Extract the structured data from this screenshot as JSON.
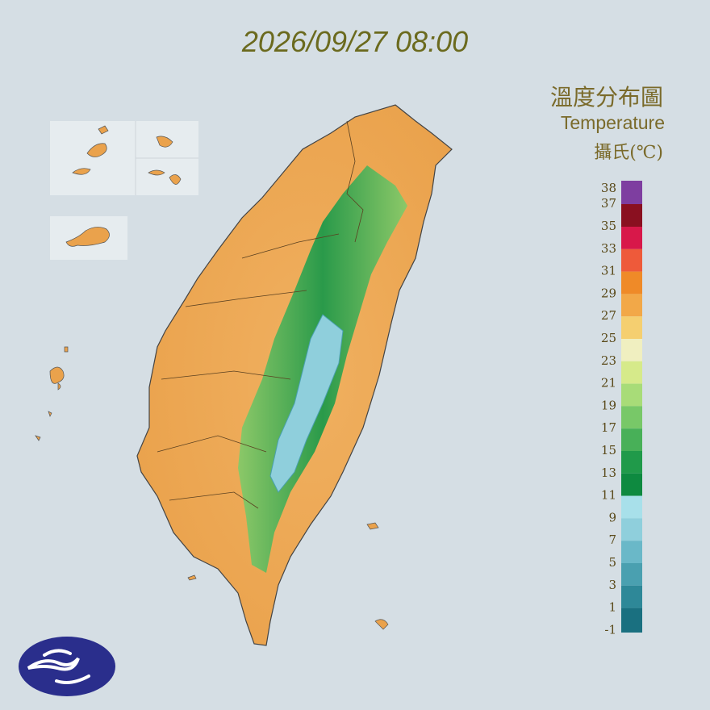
{
  "header": {
    "datetime": "2026/09/27 08:00"
  },
  "legend": {
    "title_zh": "溫度分布圖",
    "title_en": "Temperature",
    "unit": "攝氏(℃)",
    "labels": [
      "38",
      "37",
      "35",
      "33",
      "31",
      "29",
      "27",
      "25",
      "23",
      "21",
      "19",
      "17",
      "15",
      "13",
      "11",
      "9",
      "7",
      "5",
      "3",
      "1",
      "-1"
    ],
    "colors": [
      "#7e3ea0",
      "#8a1020",
      "#d8184a",
      "#ee5a3a",
      "#ef8a28",
      "#f2a848",
      "#f5cf70",
      "#f0efc0",
      "#d6ea8a",
      "#a8dc78",
      "#78c868",
      "#48b058",
      "#209a4a",
      "#0e8a40",
      "#a8e0ea",
      "#8fcfdc",
      "#6ab8c8",
      "#4aa0b0",
      "#2e8898",
      "#1a7080"
    ]
  }
}
